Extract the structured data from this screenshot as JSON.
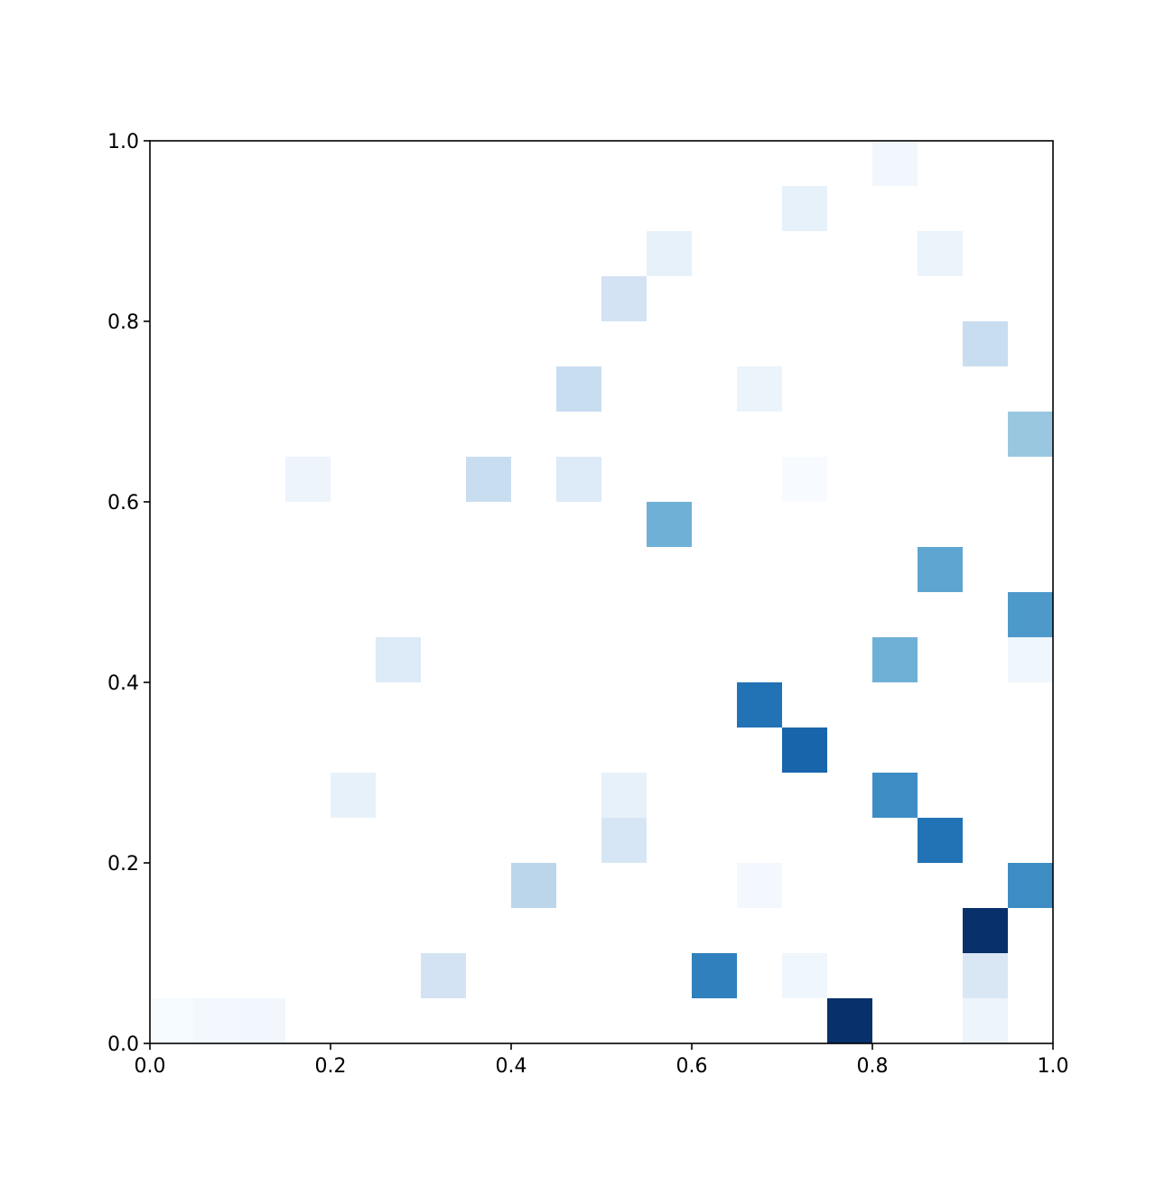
{
  "chart_data": {
    "type": "hist2d",
    "xbins": [
      0,
      0.05,
      0.1,
      0.15,
      0.2,
      0.25,
      0.3,
      0.35,
      0.4,
      0.45,
      0.5,
      0.55,
      0.6,
      0.65,
      0.7,
      0.75,
      0.8,
      0.85,
      0.9,
      0.95,
      1.0
    ],
    "ybins": [
      0,
      0.05,
      0.1,
      0.15,
      0.2,
      0.25,
      0.3,
      0.35,
      0.4,
      0.45,
      0.5,
      0.55,
      0.6,
      0.65,
      0.7,
      0.75,
      0.8,
      0.85,
      0.9,
      0.95,
      1.0
    ],
    "counts": [
      [
        0.03,
        0.04,
        0.05,
        null,
        null,
        null,
        null,
        null,
        null,
        null,
        null,
        null,
        null,
        null,
        null,
        1.0,
        null,
        null,
        0.07,
        null
      ],
      [
        null,
        null,
        null,
        null,
        null,
        null,
        0.2,
        null,
        null,
        null,
        null,
        null,
        0.7,
        null,
        0.06,
        null,
        null,
        null,
        0.17,
        null
      ],
      [
        null,
        null,
        null,
        null,
        null,
        null,
        null,
        null,
        null,
        null,
        null,
        null,
        null,
        null,
        null,
        null,
        null,
        null,
        1.0,
        null
      ],
      [
        null,
        null,
        null,
        null,
        null,
        null,
        null,
        null,
        0.3,
        null,
        null,
        null,
        null,
        0.04,
        null,
        null,
        null,
        null,
        null,
        0.65
      ],
      [
        null,
        null,
        null,
        null,
        null,
        null,
        null,
        null,
        null,
        null,
        0.18,
        null,
        null,
        null,
        null,
        null,
        null,
        0.75,
        null,
        null
      ],
      [
        null,
        null,
        null,
        null,
        0.1,
        null,
        null,
        null,
        null,
        null,
        0.1,
        null,
        null,
        null,
        null,
        null,
        0.65,
        null,
        null,
        null
      ],
      [
        null,
        null,
        null,
        null,
        null,
        null,
        null,
        null,
        null,
        null,
        null,
        null,
        null,
        null,
        0.8,
        null,
        null,
        null,
        null,
        null
      ],
      [
        null,
        null,
        null,
        null,
        null,
        null,
        null,
        null,
        null,
        null,
        null,
        null,
        null,
        0.75,
        null,
        null,
        null,
        null,
        null,
        null
      ],
      [
        null,
        null,
        null,
        null,
        null,
        0.15,
        null,
        null,
        null,
        null,
        null,
        null,
        null,
        null,
        null,
        null,
        0.5,
        null,
        null,
        0.06
      ],
      [
        null,
        null,
        null,
        null,
        null,
        null,
        null,
        null,
        null,
        null,
        null,
        null,
        null,
        null,
        null,
        null,
        null,
        null,
        null,
        0.6
      ],
      [
        null,
        null,
        null,
        null,
        null,
        null,
        null,
        null,
        null,
        null,
        null,
        null,
        null,
        null,
        null,
        null,
        null,
        0.55,
        null,
        null
      ],
      [
        null,
        null,
        null,
        null,
        null,
        null,
        null,
        null,
        null,
        null,
        null,
        0.5,
        null,
        null,
        null,
        null,
        null,
        null,
        null,
        null
      ],
      [
        null,
        null,
        null,
        0.07,
        null,
        null,
        null,
        0.25,
        null,
        0.15,
        null,
        null,
        null,
        null,
        0.02,
        null,
        null,
        null,
        null,
        null
      ],
      [
        null,
        null,
        null,
        null,
        null,
        null,
        null,
        null,
        null,
        null,
        null,
        null,
        null,
        null,
        null,
        null,
        null,
        null,
        null,
        0.4
      ],
      [
        null,
        null,
        null,
        null,
        null,
        null,
        null,
        null,
        null,
        0.25,
        null,
        null,
        null,
        0.08,
        null,
        null,
        null,
        null,
        null,
        null
      ],
      [
        null,
        null,
        null,
        null,
        null,
        null,
        null,
        null,
        null,
        null,
        null,
        null,
        null,
        null,
        null,
        null,
        null,
        null,
        0.25,
        null
      ],
      [
        null,
        null,
        null,
        null,
        null,
        null,
        null,
        null,
        null,
        null,
        0.2,
        null,
        null,
        null,
        null,
        null,
        null,
        null,
        null,
        null
      ],
      [
        null,
        null,
        null,
        null,
        null,
        null,
        null,
        null,
        null,
        null,
        null,
        0.1,
        null,
        null,
        null,
        null,
        null,
        0.08,
        null,
        null
      ],
      [
        null,
        null,
        null,
        null,
        null,
        null,
        null,
        null,
        null,
        null,
        null,
        null,
        null,
        null,
        0.1,
        null,
        null,
        null,
        null,
        null
      ],
      [
        null,
        null,
        null,
        null,
        null,
        null,
        null,
        null,
        null,
        null,
        null,
        null,
        null,
        null,
        null,
        null,
        0.05,
        null,
        null,
        null
      ]
    ],
    "colormap": [
      "#f7fbff",
      "#deebf7",
      "#c6dbef",
      "#9ecae1",
      "#6baed6",
      "#4292c6",
      "#2171b5",
      "#08519c",
      "#08306b"
    ],
    "xlim": [
      0,
      1.0
    ],
    "ylim": [
      0,
      1.0
    ],
    "xticks": [
      {
        "value": 0,
        "label": "0.0"
      },
      0.2,
      0.4,
      0.6,
      0.8,
      {
        "value": 1.0,
        "label": "1.0"
      }
    ],
    "yticks": [
      {
        "value": 0,
        "label": "0.0"
      },
      0.2,
      0.4,
      0.6,
      0.8,
      {
        "value": 1.0,
        "label": "1.0"
      }
    ]
  }
}
